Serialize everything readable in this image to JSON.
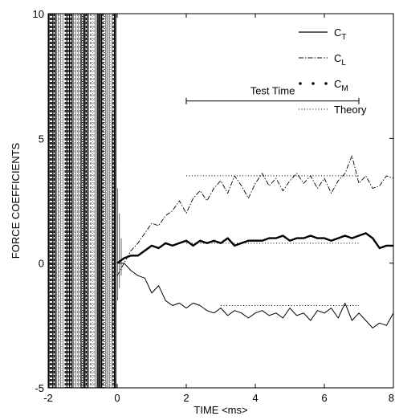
{
  "chart_data": {
    "type": "line",
    "title": "",
    "xlabel": "TIME <ms>",
    "ylabel": "FORCE COEFFICIENTS",
    "xlim": [
      -2,
      8
    ],
    "ylim": [
      -5,
      10
    ],
    "x_ticks": [
      -2,
      0,
      2,
      4,
      6,
      8
    ],
    "y_ticks": [
      -5,
      0,
      5,
      10
    ],
    "grid": false,
    "legend_placement": "top-right",
    "legend": [
      {
        "base": "C",
        "sub": "T",
        "style": "solid"
      },
      {
        "base": "C",
        "sub": "L",
        "style": "dash-dot"
      },
      {
        "base": "C",
        "sub": "M",
        "style": "dots"
      },
      {
        "base": "Theory",
        "sub": "",
        "style": "dotted"
      }
    ],
    "annotation": {
      "text": "Test Time",
      "x_start": 2,
      "x_end": 7,
      "y": 6.5
    },
    "oscillation_region": {
      "x_start": -2,
      "x_end": 0,
      "y_min": -5,
      "y_max": 10
    },
    "series": [
      {
        "style": "solid-thin",
        "x": [
          0.0,
          0.2,
          0.4,
          0.6,
          0.8,
          1.0,
          1.2,
          1.4,
          1.6,
          1.8,
          2.0,
          2.2,
          2.4,
          2.6,
          2.8,
          3.0,
          3.2,
          3.4,
          3.6,
          3.8,
          4.0,
          4.2,
          4.4,
          4.6,
          4.8,
          5.0,
          5.2,
          5.4,
          5.6,
          5.8,
          6.0,
          6.2,
          6.4,
          6.6,
          6.8,
          7.0,
          7.2,
          7.4,
          7.6,
          7.8,
          8.0
        ],
        "values": [
          0.0,
          0.0,
          -0.3,
          -0.5,
          -0.6,
          -1.2,
          -0.9,
          -1.5,
          -1.7,
          -1.6,
          -1.8,
          -1.6,
          -1.7,
          -1.9,
          -2.0,
          -1.8,
          -2.1,
          -1.9,
          -2.0,
          -2.2,
          -2.0,
          -1.9,
          -2.1,
          -2.0,
          -2.2,
          -1.8,
          -2.1,
          -2.0,
          -2.3,
          -1.9,
          -2.0,
          -1.8,
          -2.2,
          -1.6,
          -2.3,
          -2.0,
          -2.3,
          -2.6,
          -2.4,
          -2.5,
          -2.0
        ]
      },
      {
        "style": "solid-thick",
        "x": [
          0.0,
          0.2,
          0.4,
          0.6,
          0.8,
          1.0,
          1.2,
          1.4,
          1.6,
          1.8,
          2.0,
          2.2,
          2.4,
          2.6,
          2.8,
          3.0,
          3.2,
          3.4,
          3.6,
          3.8,
          4.0,
          4.2,
          4.4,
          4.6,
          4.8,
          5.0,
          5.2,
          5.4,
          5.6,
          5.8,
          6.0,
          6.2,
          6.4,
          6.6,
          6.8,
          7.0,
          7.2,
          7.4,
          7.6,
          7.8,
          8.0
        ],
        "values": [
          0.0,
          0.2,
          0.3,
          0.3,
          0.5,
          0.7,
          0.6,
          0.8,
          0.7,
          0.8,
          0.9,
          0.7,
          0.9,
          0.8,
          0.9,
          0.8,
          1.0,
          0.7,
          0.8,
          0.9,
          0.9,
          0.9,
          1.0,
          1.0,
          1.1,
          0.9,
          1.0,
          1.0,
          1.1,
          1.0,
          1.0,
          0.9,
          1.0,
          1.1,
          1.0,
          1.1,
          1.2,
          1.0,
          0.6,
          0.7,
          0.7
        ]
      },
      {
        "style": "dash-dot",
        "x": [
          0.0,
          0.2,
          0.4,
          0.6,
          0.8,
          1.0,
          1.2,
          1.4,
          1.6,
          1.8,
          2.0,
          2.2,
          2.4,
          2.6,
          2.8,
          3.0,
          3.2,
          3.4,
          3.6,
          3.8,
          4.0,
          4.2,
          4.4,
          4.6,
          4.8,
          5.0,
          5.2,
          5.4,
          5.6,
          5.8,
          6.0,
          6.2,
          6.4,
          6.6,
          6.8,
          7.0,
          7.2,
          7.4,
          7.6,
          7.8,
          8.0
        ],
        "values": [
          -0.5,
          0.0,
          0.5,
          0.8,
          1.2,
          1.6,
          1.5,
          1.9,
          2.1,
          2.5,
          2.0,
          2.6,
          2.9,
          2.5,
          3.0,
          3.3,
          2.8,
          3.5,
          3.1,
          2.6,
          3.2,
          3.6,
          3.1,
          3.4,
          2.9,
          3.3,
          3.6,
          3.2,
          3.5,
          3.0,
          3.4,
          2.8,
          3.3,
          3.6,
          4.3,
          3.2,
          3.5,
          3.0,
          3.1,
          3.5,
          3.4
        ]
      }
    ],
    "theory_lines": [
      {
        "x_start": 2,
        "x_end": 7,
        "y": 3.5
      },
      {
        "x_start": 2,
        "x_end": 7,
        "y": 0.8
      },
      {
        "x_start": 3,
        "x_end": 7,
        "y": -1.7
      }
    ]
  }
}
